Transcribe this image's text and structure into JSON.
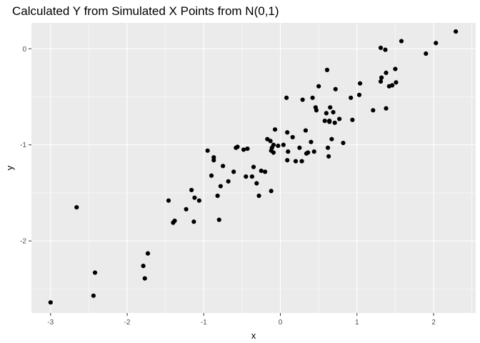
{
  "chart_data": {
    "type": "scatter",
    "title": "Calculated Y from Simulated X Points from N(0,1)",
    "xlabel": "x",
    "ylabel": "y",
    "xlim": [
      -3.25,
      2.55
    ],
    "ylim": [
      -2.75,
      0.27
    ],
    "x_ticks": [
      -3,
      -2,
      -1,
      0,
      1,
      2
    ],
    "x_tick_labels": [
      "-3",
      "-2",
      "-1",
      "0",
      "1",
      "2"
    ],
    "y_ticks": [
      -2,
      -1,
      0
    ],
    "y_tick_labels": [
      "-2",
      "-1",
      "0"
    ],
    "grid": true,
    "legend": "none",
    "colors": {
      "panel": "#ebebeb",
      "grid_major": "#ffffff",
      "point": "#000000"
    },
    "x": [
      -3.0,
      -2.66,
      -2.44,
      -2.42,
      -1.79,
      -1.77,
      -1.73,
      -1.46,
      -1.4,
      -1.38,
      -1.23,
      -1.16,
      -1.13,
      -1.12,
      -1.06,
      -0.95,
      -0.9,
      -0.87,
      -0.87,
      -0.82,
      -0.8,
      -0.78,
      -0.75,
      -0.68,
      -0.61,
      -0.58,
      -0.56,
      -0.48,
      -0.45,
      -0.43,
      -0.37,
      -0.35,
      -0.31,
      -0.28,
      -0.25,
      -0.2,
      -0.17,
      -0.13,
      -0.12,
      -0.12,
      -0.11,
      -0.09,
      -0.09,
      -0.07,
      -0.03,
      0.04,
      0.08,
      0.09,
      0.09,
      0.1,
      0.16,
      0.2,
      0.25,
      0.28,
      0.29,
      0.33,
      0.34,
      0.36,
      0.4,
      0.42,
      0.44,
      0.46,
      0.47,
      0.5,
      0.58,
      0.6,
      0.61,
      0.62,
      0.63,
      0.64,
      0.64,
      0.65,
      0.67,
      0.69,
      0.71,
      0.72,
      0.77,
      0.82,
      0.92,
      0.94,
      1.03,
      1.04,
      1.21,
      1.31,
      1.31,
      1.32,
      1.37,
      1.38,
      1.38,
      1.42,
      1.46,
      1.5,
      1.51,
      1.58,
      1.9,
      2.03,
      2.29
    ],
    "y": [
      -2.64,
      -1.65,
      -2.57,
      -2.33,
      -2.26,
      -2.39,
      -2.13,
      -1.58,
      -1.81,
      -1.79,
      -1.67,
      -1.47,
      -1.8,
      -1.55,
      -1.58,
      -1.06,
      -1.32,
      -1.13,
      -1.16,
      -1.53,
      -1.78,
      -1.43,
      -1.22,
      -1.38,
      -1.28,
      -1.03,
      -1.02,
      -1.05,
      -1.33,
      -1.04,
      -1.33,
      -1.23,
      -1.4,
      -1.53,
      -1.27,
      -1.28,
      -0.94,
      -0.96,
      -1.06,
      -1.48,
      -1.03,
      -1.08,
      -1.0,
      -0.84,
      -1.01,
      -1.0,
      -0.51,
      -0.87,
      -1.16,
      -1.07,
      -0.92,
      -1.17,
      -1.03,
      -1.17,
      -0.53,
      -0.85,
      -1.09,
      -1.08,
      -0.97,
      -0.51,
      -1.07,
      -0.61,
      -0.64,
      -0.39,
      -0.75,
      -0.67,
      -0.22,
      -1.03,
      -1.12,
      -0.75,
      -0.76,
      -0.61,
      -0.94,
      -0.66,
      -0.77,
      -0.42,
      -0.73,
      -0.98,
      -0.51,
      -0.74,
      -0.48,
      -0.36,
      -0.64,
      0.01,
      -0.34,
      -0.3,
      -0.01,
      -0.25,
      -0.62,
      -0.39,
      -0.38,
      -0.21,
      -0.35,
      0.08,
      -0.05,
      0.06,
      0.18
    ]
  }
}
